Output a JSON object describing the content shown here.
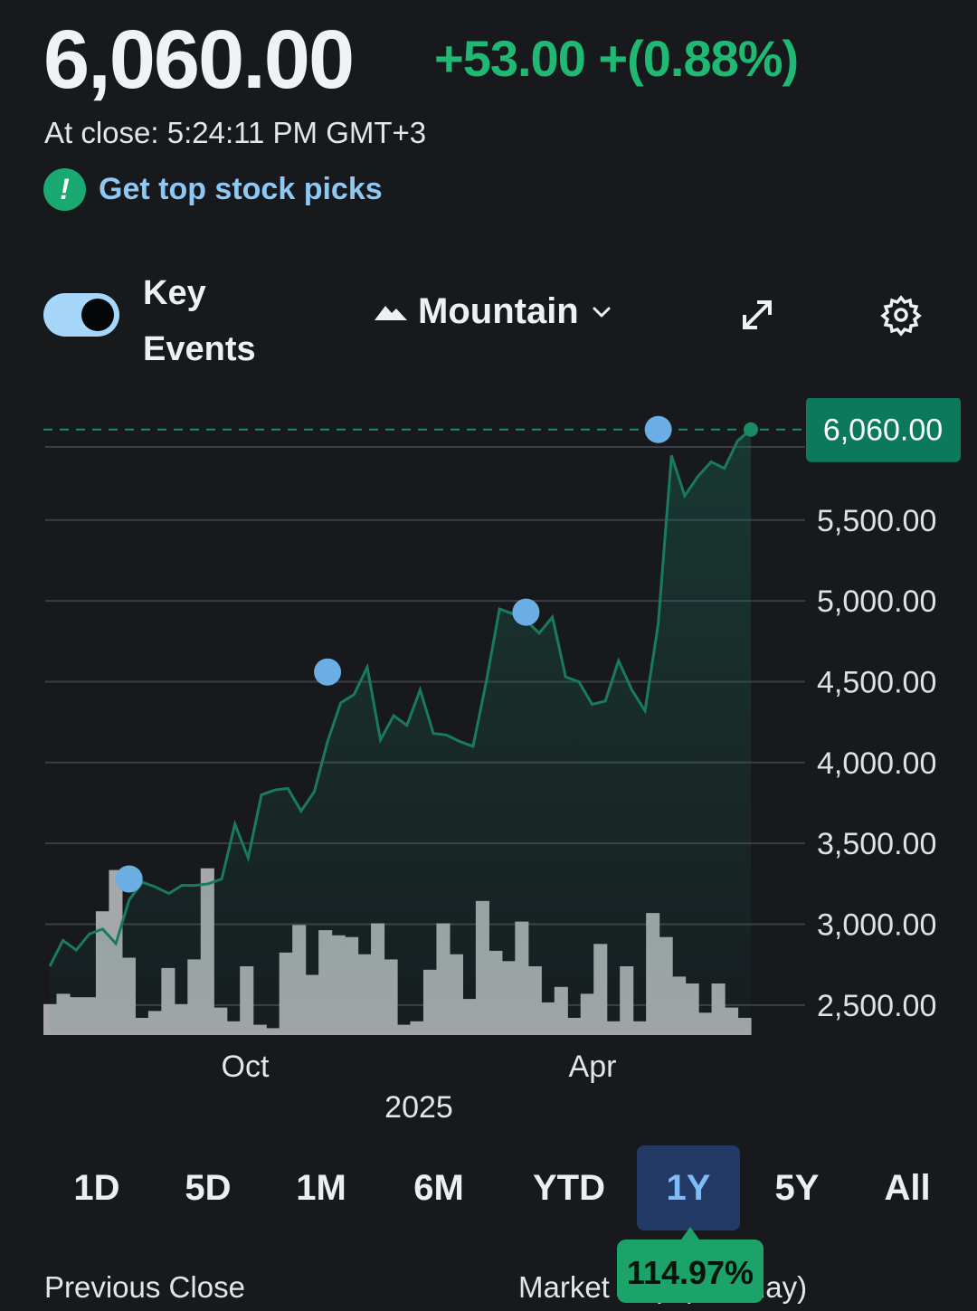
{
  "header": {
    "price": "6,060.00",
    "change": "+53.00 +(0.88%)",
    "close_time": "At close: 5:24:11 PM GMT+3",
    "picks_label": "Get top stock picks"
  },
  "controls": {
    "key_events_label": "Key Events",
    "key_events_on": true,
    "chart_type_label": "Mountain"
  },
  "colors": {
    "up": "#1fb974",
    "line": "#1a7a5f",
    "event_marker": "#6aaee3",
    "price_tag": "#0b7a5c",
    "volume": "#a5a7a9",
    "active_range_bg": "#233a66"
  },
  "chart_data": {
    "type": "area",
    "y_ticks": [
      "2,500.00",
      "3,000.00",
      "3,500.00",
      "4,000.00",
      "4,500.00",
      "5,000.00",
      "5,500.00"
    ],
    "x_tick_labels": [
      "Oct",
      "Apr"
    ],
    "year_label": "2025",
    "last_price_tag": "6,060.00",
    "ylim": [
      2320,
      6120
    ],
    "reference_line": 6060,
    "series_prices": [
      2740,
      2900,
      2840,
      2940,
      2970,
      2880,
      3150,
      3260,
      3230,
      3190,
      3240,
      3240,
      3250,
      3280,
      3620,
      3410,
      3800,
      3830,
      3840,
      3700,
      3820,
      4130,
      4370,
      4420,
      4590,
      4140,
      4290,
      4230,
      4450,
      4180,
      4170,
      4130,
      4100,
      4500,
      4950,
      4920,
      4880,
      4800,
      4900,
      4530,
      4500,
      4360,
      4380,
      4630,
      4450,
      4320,
      4860,
      5900,
      5650,
      5770,
      5860,
      5820,
      5990,
      6060
    ],
    "key_event_markers": [
      {
        "index": 6,
        "price": 3280
      },
      {
        "index": 21,
        "price": 4560
      },
      {
        "index": 36,
        "price": 4930
      },
      {
        "index": 46,
        "price": 6060
      }
    ],
    "volume_relative": [
      0.18,
      0.24,
      0.22,
      0.22,
      0.72,
      0.96,
      0.45,
      0.1,
      0.14,
      0.39,
      0.18,
      0.44,
      0.97,
      0.16,
      0.08,
      0.4,
      0.06,
      0.04,
      0.48,
      0.64,
      0.35,
      0.61,
      0.58,
      0.57,
      0.47,
      0.65,
      0.44,
      0.06,
      0.08,
      0.38,
      0.65,
      0.47,
      0.21,
      0.78,
      0.49,
      0.43,
      0.66,
      0.4,
      0.19,
      0.28,
      0.1,
      0.24,
      0.53,
      0.08,
      0.4,
      0.08,
      0.71,
      0.57,
      0.34,
      0.3,
      0.13,
      0.3,
      0.16,
      0.1
    ]
  },
  "ranges": [
    "1D",
    "5D",
    "1M",
    "6M",
    "YTD",
    "1Y",
    "5Y",
    "All"
  ],
  "active_range": "1Y",
  "performance_badge": "114.97%",
  "stats": {
    "previous_close_label": "Previous Close",
    "market_cap_label": "Market Cap (intraday)"
  }
}
